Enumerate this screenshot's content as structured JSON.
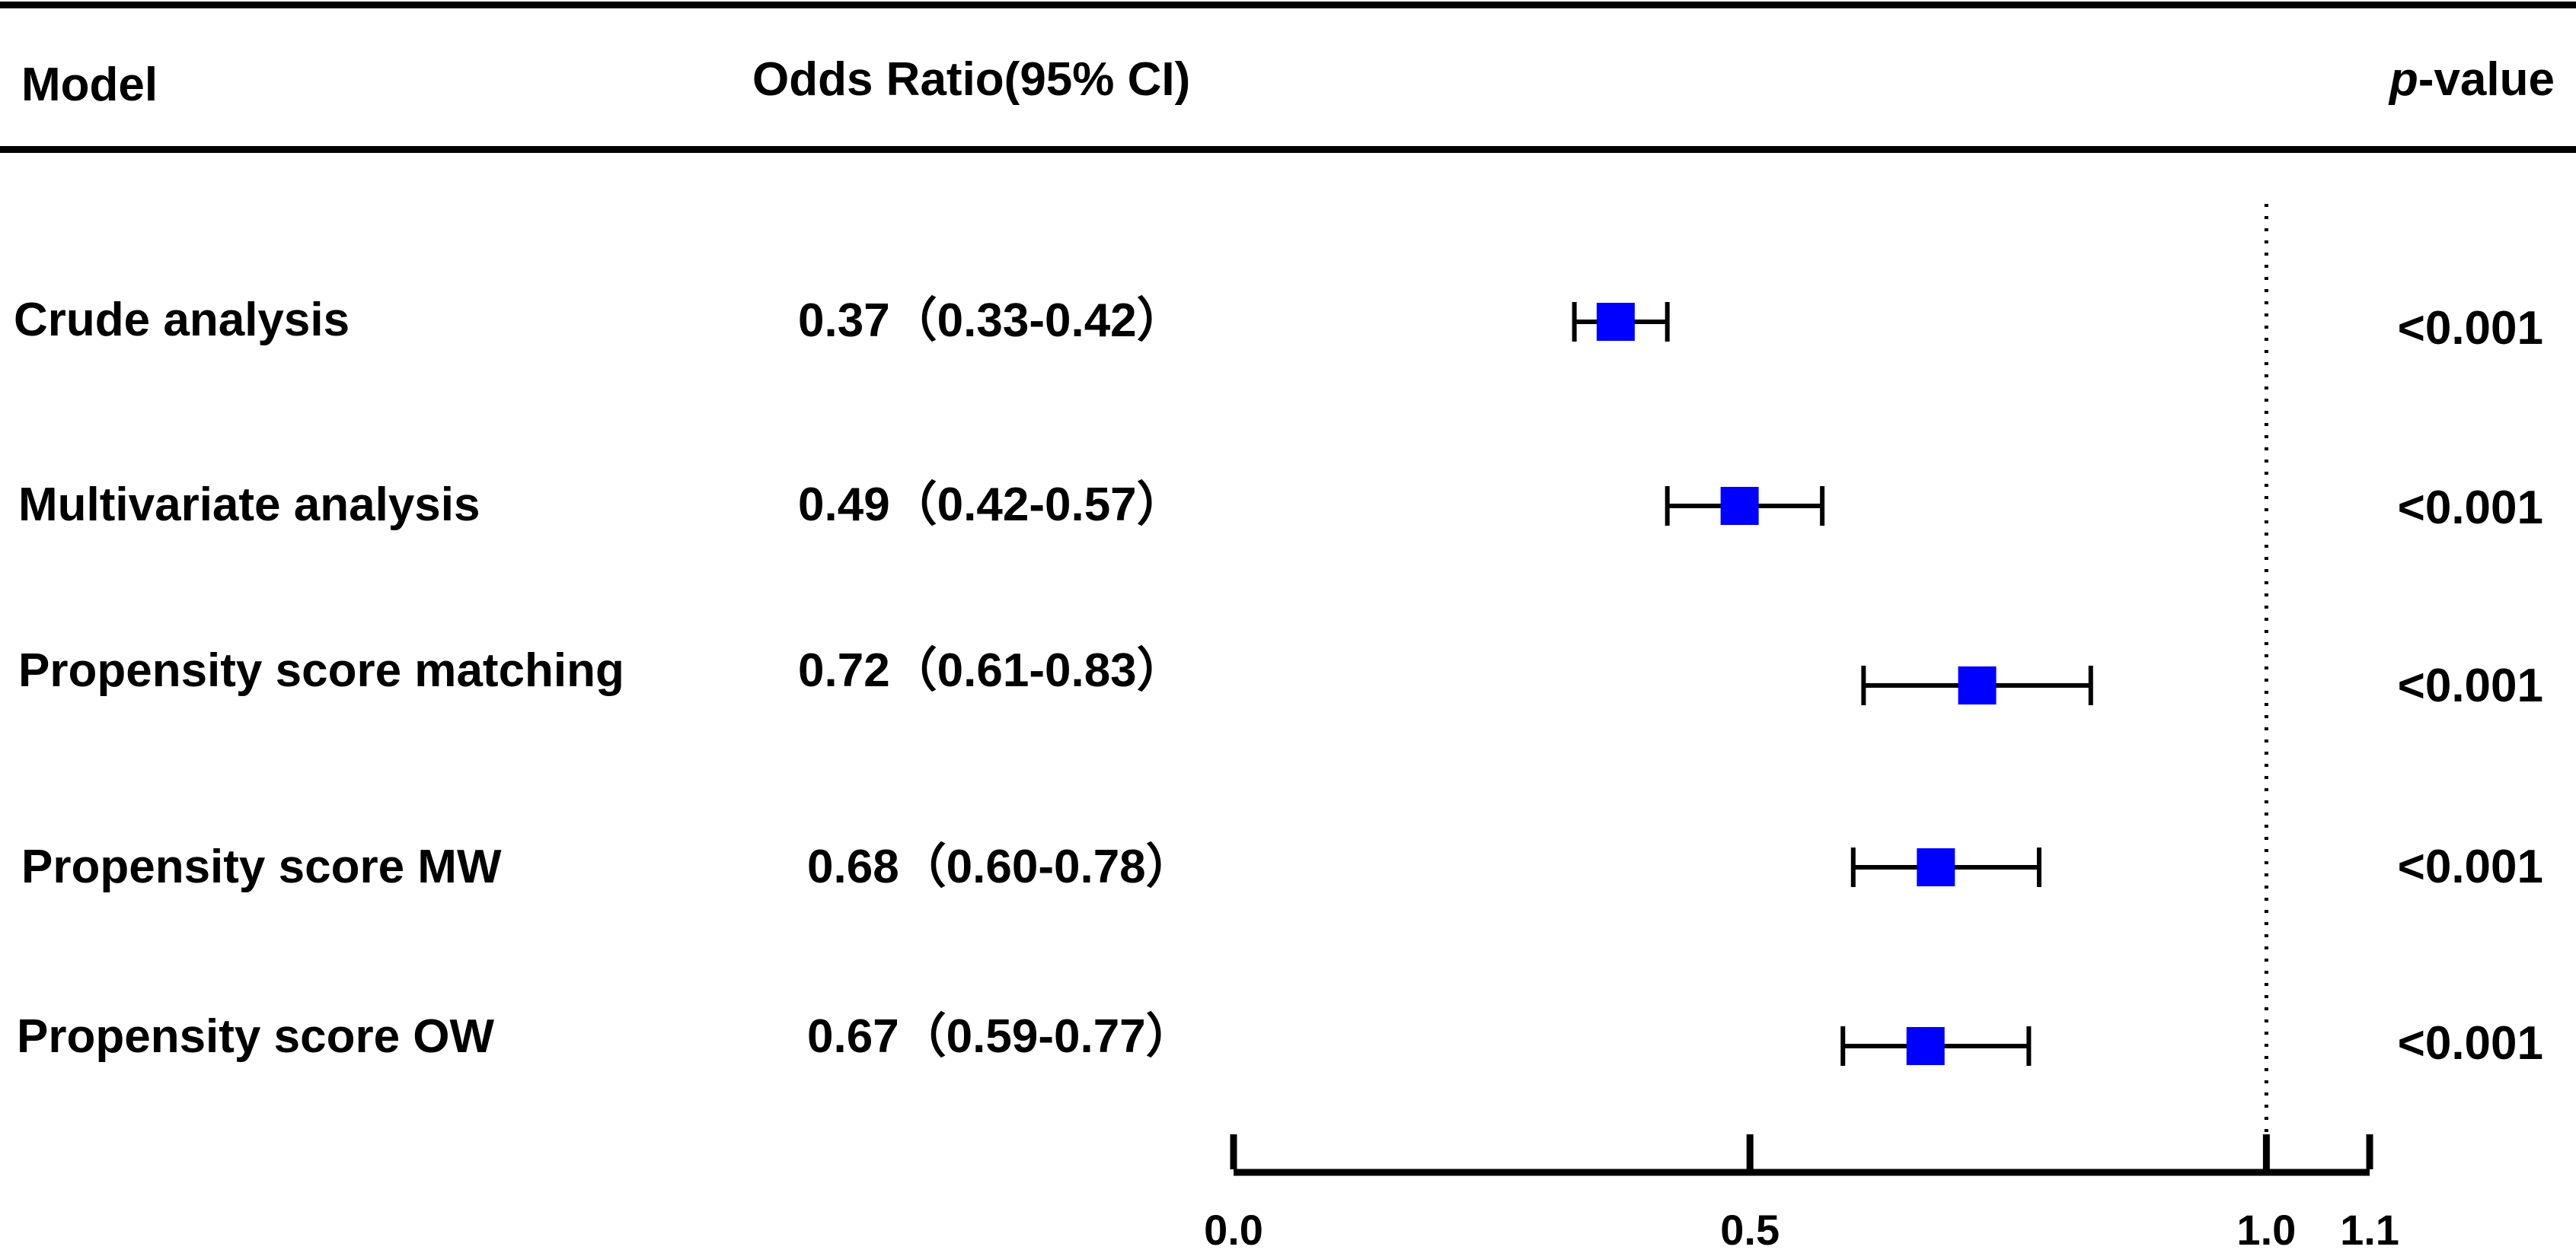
{
  "header": {
    "model": "Model",
    "odds_ratio": "Odds Ratio(95% CI)",
    "p_prefix": "p",
    "p_suffix": "-value"
  },
  "rows": [
    {
      "label": "Crude analysis",
      "or_text": "0.37（0.33-0.42）",
      "p_text": "<0.001"
    },
    {
      "label": "Multivariate analysis",
      "or_text": "0.49（0.42-0.57）",
      "p_text": "<0.001"
    },
    {
      "label": "Propensity score matching",
      "or_text": "0.72（0.61-0.83）",
      "p_text": "<0.001"
    },
    {
      "label": "Propensity score MW",
      "or_text": "0.68（0.60-0.78）",
      "p_text": "<0.001"
    },
    {
      "label": "Propensity score OW",
      "or_text": "0.67（0.59-0.77）",
      "p_text": "<0.001"
    }
  ],
  "chart_data": {
    "type": "scatter",
    "subtype": "forest-plot",
    "xlim": [
      0.0,
      1.1
    ],
    "ticks": [
      0.0,
      0.5,
      1.0,
      1.1
    ],
    "tick_labels": [
      "0.0",
      "0.5",
      "1.0",
      "1.1"
    ],
    "reference_line": 1.0,
    "points": [
      {
        "label": "Crude analysis",
        "or": 0.37,
        "lower": 0.33,
        "upper": 0.42
      },
      {
        "label": "Multivariate analysis",
        "or": 0.49,
        "lower": 0.42,
        "upper": 0.57
      },
      {
        "label": "Propensity score matching",
        "or": 0.72,
        "lower": 0.61,
        "upper": 0.83
      },
      {
        "label": "Propensity score MW",
        "or": 0.68,
        "lower": 0.6,
        "upper": 0.78
      },
      {
        "label": "Propensity score OW",
        "or": 0.67,
        "lower": 0.59,
        "upper": 0.77
      }
    ],
    "colors": {
      "marker": "#0000ff",
      "line": "#000000"
    },
    "grid": false
  }
}
